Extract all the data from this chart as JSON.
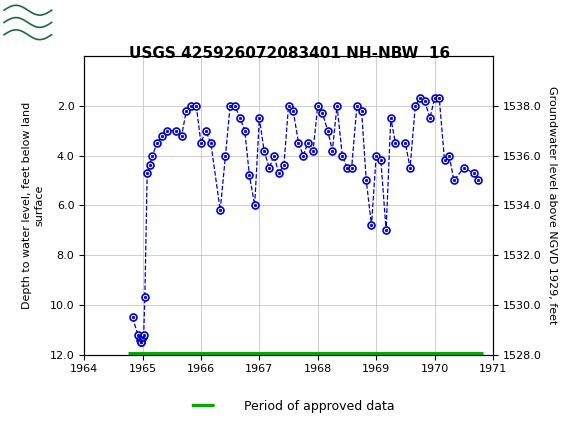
{
  "title": "USGS 425926072083401 NH-NBW  16",
  "ylabel_left": "Depth to water level, feet below land\nsurface",
  "ylabel_right": "Groundwater level above NGVD 1929, feet",
  "xlim": [
    1964,
    1971
  ],
  "ylim_left": [
    12.0,
    0.0
  ],
  "ylim_right": [
    1528.0,
    1540.0
  ],
  "yticks_left": [
    2.0,
    4.0,
    6.0,
    8.0,
    10.0,
    12.0
  ],
  "yticks_right": [
    1528.0,
    1530.0,
    1532.0,
    1534.0,
    1536.0,
    1538.0
  ],
  "xticks": [
    1964,
    1965,
    1966,
    1967,
    1968,
    1969,
    1970,
    1971
  ],
  "header_color": "#1a6b3c",
  "line_color": "#0000cc",
  "marker_facecolor": "#ffffff",
  "marker_edgecolor": "#0000cc",
  "approved_bar_color": "#00aa00",
  "background_color": "#ffffff",
  "data_x": [
    1964.83,
    1964.92,
    1964.95,
    1964.97,
    1964.98,
    1965.0,
    1965.02,
    1965.04,
    1965.08,
    1965.12,
    1965.17,
    1965.25,
    1965.33,
    1965.42,
    1965.58,
    1965.67,
    1965.75,
    1965.83,
    1965.92,
    1966.0,
    1966.08,
    1966.17,
    1966.33,
    1966.42,
    1966.5,
    1966.58,
    1966.67,
    1966.75,
    1966.83,
    1966.92,
    1967.0,
    1967.08,
    1967.17,
    1967.25,
    1967.33,
    1967.42,
    1967.5,
    1967.58,
    1967.67,
    1967.75,
    1967.83,
    1967.92,
    1968.0,
    1968.08,
    1968.17,
    1968.25,
    1968.33,
    1968.42,
    1968.5,
    1968.58,
    1968.67,
    1968.75,
    1968.83,
    1968.92,
    1969.0,
    1969.08,
    1969.17,
    1969.25,
    1969.33,
    1969.5,
    1969.58,
    1969.67,
    1969.75,
    1969.83,
    1969.92,
    1970.0,
    1970.08,
    1970.17,
    1970.25,
    1970.33,
    1970.5,
    1970.67,
    1970.75
  ],
  "data_y": [
    10.5,
    11.2,
    11.4,
    11.5,
    11.5,
    11.3,
    11.2,
    9.7,
    4.7,
    4.4,
    4.0,
    3.5,
    3.2,
    3.0,
    3.0,
    3.2,
    2.2,
    2.0,
    2.0,
    3.5,
    3.0,
    3.5,
    6.2,
    4.0,
    2.0,
    2.0,
    2.5,
    3.0,
    4.8,
    6.0,
    2.5,
    3.8,
    4.5,
    4.0,
    4.7,
    4.4,
    2.0,
    2.2,
    3.5,
    4.0,
    3.5,
    3.8,
    2.0,
    2.3,
    3.0,
    3.8,
    2.0,
    4.0,
    4.5,
    4.5,
    2.0,
    2.2,
    5.0,
    6.8,
    4.0,
    4.2,
    7.0,
    2.5,
    3.5,
    3.5,
    4.5,
    2.0,
    1.7,
    1.8,
    2.5,
    1.7,
    1.7,
    4.2,
    4.0,
    5.0,
    4.5,
    4.7,
    5.0
  ],
  "approved_bar_start": 1964.75,
  "approved_bar_end": 1970.83,
  "legend_label": "Period of approved data"
}
